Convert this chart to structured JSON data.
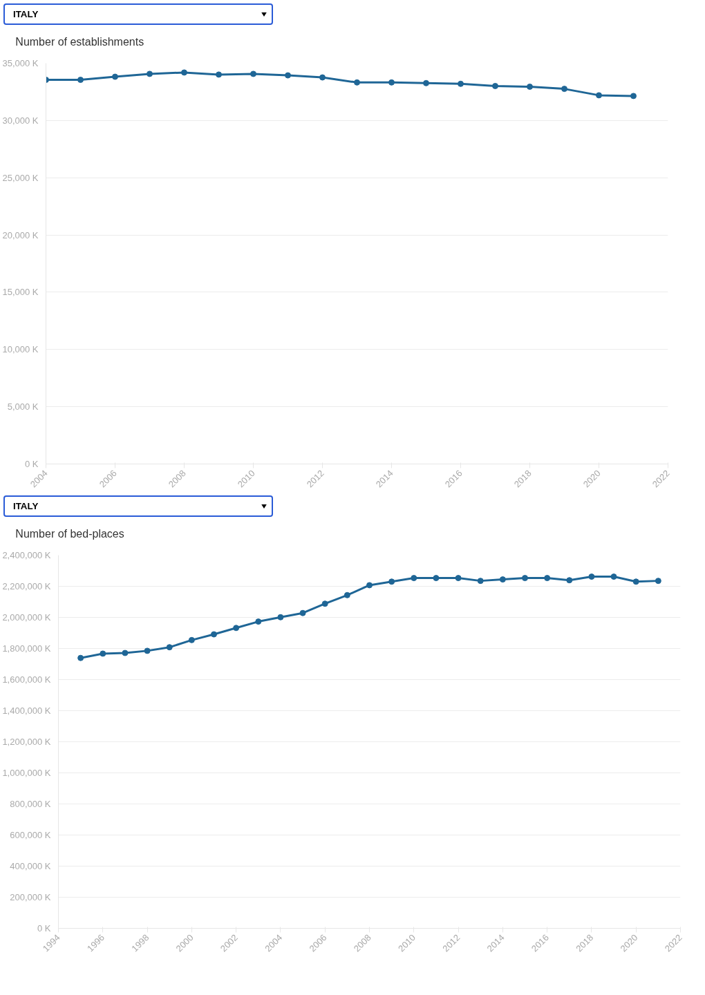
{
  "chart_data": [
    {
      "type": "line",
      "subtitle": "ITALY",
      "x": [
        2004,
        2005,
        2006,
        2007,
        2008,
        2009,
        2010,
        2011,
        2012,
        2013,
        2014,
        2015,
        2016,
        2017,
        2018,
        2019,
        2020,
        2021
      ],
      "series": [
        {
          "name": "Number of establishments",
          "color": "#1f6696",
          "values": [
            33550,
            33550,
            33820,
            34070,
            34190,
            34010,
            34070,
            33940,
            33760,
            33320,
            33320,
            33260,
            33200,
            33010,
            32950,
            32760,
            32200,
            32140
          ]
        }
      ],
      "xlim": [
        2004,
        2022
      ],
      "xticks": [
        2004,
        2006,
        2008,
        2010,
        2012,
        2014,
        2016,
        2018,
        2020,
        2022
      ],
      "ylim": [
        0,
        35000
      ],
      "yticks": [
        {
          "value": 0,
          "label": "0 K"
        },
        {
          "value": 5000,
          "label": "5,000 K"
        },
        {
          "value": 10000,
          "label": "10,000 K"
        },
        {
          "value": 15000,
          "label": "15,000 K"
        },
        {
          "value": 20000,
          "label": "20,000 K"
        },
        {
          "value": 25000,
          "label": "25,000 K"
        },
        {
          "value": 30000,
          "label": "30,000 K"
        },
        {
          "value": 35000,
          "label": "35,000 K"
        }
      ],
      "grid": "y",
      "legend": "top left",
      "marker": "circle",
      "line_style": "solid"
    },
    {
      "type": "line",
      "subtitle": "ITALY",
      "x": [
        1995,
        1996,
        1997,
        1998,
        1999,
        2000,
        2001,
        2002,
        2003,
        2004,
        2005,
        2006,
        2007,
        2008,
        2009,
        2010,
        2011,
        2012,
        2013,
        2014,
        2015,
        2016,
        2017,
        2018,
        2019,
        2020,
        2021
      ],
      "series": [
        {
          "name": "Number of bed-places",
          "color": "#1f6696",
          "values": [
            1739000,
            1767000,
            1771000,
            1785000,
            1808000,
            1854000,
            1891000,
            1932000,
            1973000,
            2001000,
            2028000,
            2088000,
            2143000,
            2207000,
            2230000,
            2253000,
            2253000,
            2253000,
            2235000,
            2244000,
            2253000,
            2253000,
            2239000,
            2262000,
            2262000,
            2230000,
            2235000
          ]
        }
      ],
      "xlim": [
        1994,
        2022
      ],
      "xticks": [
        1994,
        1996,
        1998,
        2000,
        2002,
        2004,
        2006,
        2008,
        2010,
        2012,
        2014,
        2016,
        2018,
        2020,
        2022
      ],
      "ylim": [
        0,
        2400000
      ],
      "yticks": [
        {
          "value": 0,
          "label": "0 K"
        },
        {
          "value": 200000,
          "label": "200,000 K"
        },
        {
          "value": 400000,
          "label": "400,000 K"
        },
        {
          "value": 600000,
          "label": "600,000 K"
        },
        {
          "value": 800000,
          "label": "800,000 K"
        },
        {
          "value": 1000000,
          "label": "1,000,000 K"
        },
        {
          "value": 1200000,
          "label": "1,200,000 K"
        },
        {
          "value": 1400000,
          "label": "1,400,000 K"
        },
        {
          "value": 1600000,
          "label": "1,600,000 K"
        },
        {
          "value": 1800000,
          "label": "1,800,000 K"
        },
        {
          "value": 2000000,
          "label": "2,000,000 K"
        },
        {
          "value": 2200000,
          "label": "2,200,000 K"
        },
        {
          "value": 2400000,
          "label": "2,400,000 K"
        }
      ],
      "grid": "y",
      "legend": "top left",
      "marker": "circle",
      "line_style": "solid"
    }
  ]
}
